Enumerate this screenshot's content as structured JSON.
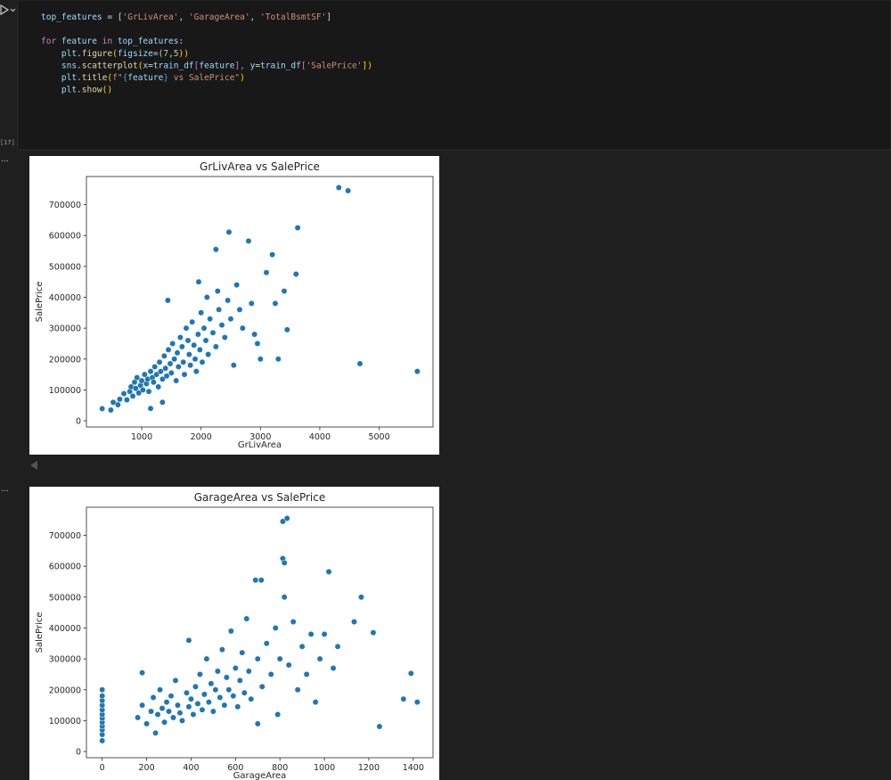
{
  "cell": {
    "execution_count": "[17]",
    "output_marker": "...",
    "code_lines": [
      [
        {
          "text": "top_features",
          "color": "#9cdcfe"
        },
        {
          "text": " = [",
          "color": "#d4d4d4"
        },
        {
          "text": "'GrLivArea'",
          "color": "#ce9178"
        },
        {
          "text": ", ",
          "color": "#d4d4d4"
        },
        {
          "text": "'GarageArea'",
          "color": "#ce9178"
        },
        {
          "text": ", ",
          "color": "#d4d4d4"
        },
        {
          "text": "'TotalBsmtSF'",
          "color": "#ce9178"
        },
        {
          "text": "]",
          "color": "#d4d4d4"
        }
      ],
      [],
      [
        {
          "text": "for",
          "color": "#c586c0"
        },
        {
          "text": " feature ",
          "color": "#9cdcfe"
        },
        {
          "text": "in",
          "color": "#c586c0"
        },
        {
          "text": " top_features",
          "color": "#9cdcfe"
        },
        {
          "text": ":",
          "color": "#d4d4d4"
        }
      ],
      [
        {
          "text": "    plt.",
          "color": "#9cdcfe"
        },
        {
          "text": "figure",
          "color": "#dcdcaa"
        },
        {
          "text": "(",
          "color": "#ffd700"
        },
        {
          "text": "figsize",
          "color": "#9cdcfe"
        },
        {
          "text": "=(",
          "color": "#d4d4d4"
        },
        {
          "text": "7",
          "color": "#b5cea8"
        },
        {
          "text": ",",
          "color": "#d4d4d4"
        },
        {
          "text": "5",
          "color": "#b5cea8"
        },
        {
          "text": "))",
          "color": "#ffd700"
        }
      ],
      [
        {
          "text": "    sns.",
          "color": "#9cdcfe"
        },
        {
          "text": "scatterplot",
          "color": "#dcdcaa"
        },
        {
          "text": "(",
          "color": "#ffd700"
        },
        {
          "text": "x",
          "color": "#9cdcfe"
        },
        {
          "text": "=",
          "color": "#d4d4d4"
        },
        {
          "text": "train_df",
          "color": "#9cdcfe"
        },
        {
          "text": "[",
          "color": "#da70d6"
        },
        {
          "text": "feature",
          "color": "#9cdcfe"
        },
        {
          "text": "], ",
          "color": "#da70d6"
        },
        {
          "text": "y",
          "color": "#9cdcfe"
        },
        {
          "text": "=",
          "color": "#d4d4d4"
        },
        {
          "text": "train_df",
          "color": "#9cdcfe"
        },
        {
          "text": "[",
          "color": "#da70d6"
        },
        {
          "text": "'SalePrice'",
          "color": "#ce9178"
        },
        {
          "text": "])",
          "color": "#ffd700"
        }
      ],
      [
        {
          "text": "    plt.",
          "color": "#9cdcfe"
        },
        {
          "text": "title",
          "color": "#dcdcaa"
        },
        {
          "text": "(",
          "color": "#ffd700"
        },
        {
          "text": "f\"",
          "color": "#ce9178"
        },
        {
          "text": "{",
          "color": "#569cd6"
        },
        {
          "text": "feature",
          "color": "#9cdcfe"
        },
        {
          "text": "}",
          "color": "#569cd6"
        },
        {
          "text": " vs SalePrice\"",
          "color": "#ce9178"
        },
        {
          "text": ")",
          "color": "#ffd700"
        }
      ],
      [
        {
          "text": "    plt.",
          "color": "#9cdcfe"
        },
        {
          "text": "show",
          "color": "#dcdcaa"
        },
        {
          "text": "()",
          "color": "#ffd700"
        }
      ]
    ]
  },
  "chart_data": [
    {
      "type": "scatter",
      "title": "GrLivArea vs SalePrice",
      "x_label": "GrLivArea",
      "y_label": "SalePrice",
      "color": "#1f77b4",
      "xlim": [
        69,
        5907
      ],
      "ylim": [
        -20000,
        791000
      ],
      "xticks": [
        1000,
        2000,
        3000,
        4000,
        5000
      ],
      "yticks": [
        0,
        100000,
        200000,
        300000,
        400000,
        500000,
        600000,
        700000
      ],
      "x": [
        334,
        480,
        520,
        600,
        630,
        700,
        750,
        800,
        820,
        850,
        880,
        900,
        920,
        950,
        980,
        1000,
        1020,
        1050,
        1080,
        1100,
        1120,
        1150,
        1180,
        1200,
        1220,
        1250,
        1280,
        1300,
        1320,
        1350,
        1380,
        1400,
        1420,
        1450,
        1480,
        1500,
        1520,
        1550,
        1580,
        1600,
        1620,
        1650,
        1680,
        1700,
        1720,
        1750,
        1780,
        1800,
        1820,
        1850,
        1880,
        1900,
        1920,
        1950,
        1980,
        2000,
        2020,
        2050,
        2080,
        2100,
        2120,
        2150,
        2200,
        2250,
        2280,
        2300,
        2350,
        2400,
        2450,
        2470,
        2500,
        2550,
        2600,
        2650,
        2700,
        2800,
        2850,
        2900,
        2950,
        3000,
        3100,
        3200,
        3250,
        3300,
        3400,
        3450,
        3600,
        3627,
        4320,
        4476,
        4676,
        5642,
        1440,
        1960,
        2250,
        1150,
        1350
      ],
      "values": [
        39300,
        35000,
        60000,
        52000,
        70000,
        88000,
        68000,
        95000,
        110000,
        80000,
        125000,
        105000,
        140000,
        90000,
        115000,
        130000,
        100000,
        150000,
        120000,
        135000,
        95000,
        160000,
        140000,
        125000,
        175000,
        150000,
        110000,
        190000,
        160000,
        135000,
        210000,
        170000,
        145000,
        230000,
        185000,
        155000,
        250000,
        200000,
        130000,
        220000,
        175000,
        270000,
        240000,
        190000,
        150000,
        300000,
        260000,
        215000,
        180000,
        320000,
        245000,
        200000,
        160000,
        280000,
        230000,
        350000,
        190000,
        300000,
        260000,
        400000,
        215000,
        330000,
        285000,
        240000,
        420000,
        360000,
        310000,
        270000,
        390000,
        611000,
        330000,
        180000,
        440000,
        360000,
        300000,
        582000,
        380000,
        280000,
        250000,
        200000,
        480000,
        538000,
        380000,
        200000,
        420000,
        295000,
        475000,
        625000,
        755000,
        745000,
        185000,
        160000,
        390000,
        450000,
        555000,
        40000,
        60000
      ]
    },
    {
      "type": "scatter",
      "title": "GarageArea vs SalePrice",
      "x_label": "GarageArea",
      "y_label": "SalePrice",
      "color": "#1f77b4",
      "xlim": [
        -71,
        1489
      ],
      "ylim": [
        -20000,
        791000
      ],
      "xticks": [
        0,
        200,
        400,
        600,
        800,
        1000,
        1200,
        1400
      ],
      "yticks": [
        0,
        100000,
        200000,
        300000,
        400000,
        500000,
        600000,
        700000
      ],
      "x": [
        0,
        0,
        0,
        0,
        0,
        0,
        0,
        0,
        0,
        0,
        0,
        0,
        160,
        180,
        180,
        200,
        220,
        230,
        240,
        250,
        260,
        270,
        280,
        290,
        300,
        310,
        320,
        330,
        340,
        350,
        360,
        380,
        390,
        400,
        410,
        420,
        430,
        440,
        450,
        460,
        470,
        480,
        490,
        500,
        510,
        520,
        530,
        540,
        550,
        560,
        570,
        580,
        590,
        600,
        610,
        620,
        630,
        640,
        650,
        660,
        670,
        690,
        700,
        716,
        720,
        740,
        760,
        780,
        790,
        800,
        813,
        813,
        820,
        820,
        832,
        840,
        860,
        880,
        900,
        920,
        940,
        960,
        980,
        1000,
        1020,
        1040,
        1060,
        1134,
        1166,
        1220,
        1248,
        1356,
        1390,
        1418,
        390,
        700
      ],
      "values": [
        35000,
        55000,
        70000,
        82000,
        95000,
        108000,
        120000,
        135000,
        150000,
        165000,
        180000,
        200000,
        110000,
        150000,
        255000,
        90000,
        130000,
        175000,
        60000,
        120000,
        200000,
        140000,
        95000,
        160000,
        130000,
        180000,
        110000,
        230000,
        150000,
        125000,
        100000,
        190000,
        145000,
        170000,
        120000,
        210000,
        155000,
        250000,
        135000,
        185000,
        300000,
        160000,
        220000,
        130000,
        200000,
        260000,
        175000,
        330000,
        150000,
        240000,
        200000,
        390000,
        180000,
        270000,
        145000,
        230000,
        320000,
        190000,
        430000,
        260000,
        170000,
        555000,
        300000,
        555000,
        210000,
        350000,
        250000,
        400000,
        120000,
        300000,
        625000,
        745000,
        500000,
        611000,
        755000,
        280000,
        420000,
        200000,
        340000,
        250000,
        380000,
        160000,
        300000,
        380000,
        582000,
        270000,
        340000,
        420000,
        500000,
        385000,
        81000,
        170000,
        253000,
        160000,
        360000,
        90000
      ]
    }
  ]
}
